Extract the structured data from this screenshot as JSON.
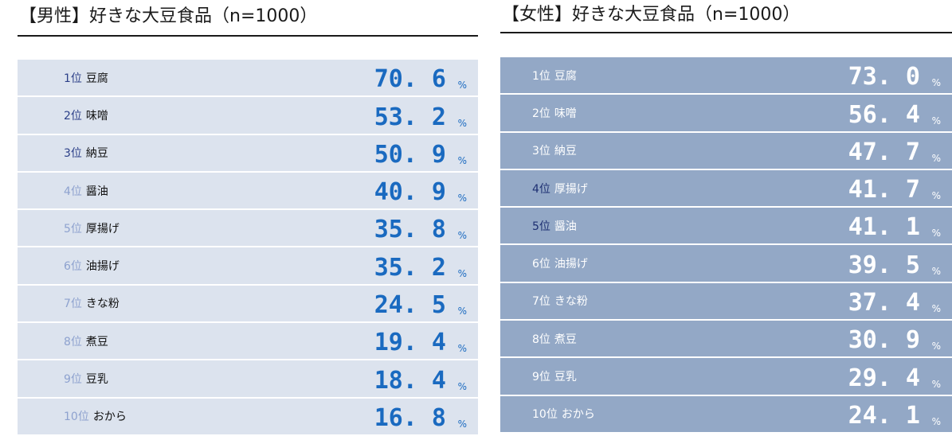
{
  "chart_data": [
    {
      "type": "table",
      "title": "【男性】好きな大豆食品（n=1000）",
      "unit": "%",
      "rows": [
        {
          "rank": "1位",
          "item": "豆腐",
          "value": "70. 6",
          "rank_color": "#2b3f88"
        },
        {
          "rank": "2位",
          "item": "味噌",
          "value": "53. 2",
          "rank_color": "#2b3f88"
        },
        {
          "rank": "3位",
          "item": "納豆",
          "value": "50. 9",
          "rank_color": "#2b3f88"
        },
        {
          "rank": "4位",
          "item": "醤油",
          "value": "40. 9",
          "rank_color": "#8ea2cf"
        },
        {
          "rank": "5位",
          "item": "厚揚げ",
          "value": "35. 8",
          "rank_color": "#8ea2cf"
        },
        {
          "rank": "6位",
          "item": "油揚げ",
          "value": "35. 2",
          "rank_color": "#8ea2cf"
        },
        {
          "rank": "7位",
          "item": "きな粉",
          "value": "24. 5",
          "rank_color": "#8ea2cf"
        },
        {
          "rank": "8位",
          "item": "煮豆",
          "value": "19. 4",
          "rank_color": "#8ea2cf"
        },
        {
          "rank": "9位",
          "item": "豆乳",
          "value": "18. 4",
          "rank_color": "#8ea2cf"
        },
        {
          "rank": "10位",
          "item": "おから",
          "value": "16. 8",
          "rank_color": "#8ea2cf"
        }
      ]
    },
    {
      "type": "table",
      "title": "【女性】好きな大豆食品（n=1000）",
      "unit": "%",
      "rows": [
        {
          "rank": "1位",
          "item": "豆腐",
          "value": "73. 0",
          "rank_color": "#ffffff"
        },
        {
          "rank": "2位",
          "item": "味噌",
          "value": "56. 4",
          "rank_color": "#ffffff"
        },
        {
          "rank": "3位",
          "item": "納豆",
          "value": "47. 7",
          "rank_color": "#ffffff"
        },
        {
          "rank": "4位",
          "item": "厚揚げ",
          "value": "41. 7",
          "rank_color": "#1d2f72"
        },
        {
          "rank": "5位",
          "item": "醤油",
          "value": "41. 1",
          "rank_color": "#1d2f72"
        },
        {
          "rank": "6位",
          "item": "油揚げ",
          "value": "39. 5",
          "rank_color": "#ffffff"
        },
        {
          "rank": "7位",
          "item": "きな粉",
          "value": "37. 4",
          "rank_color": "#ffffff"
        },
        {
          "rank": "8位",
          "item": "煮豆",
          "value": "30. 9",
          "rank_color": "#ffffff"
        },
        {
          "rank": "9位",
          "item": "豆乳",
          "value": "29. 4",
          "rank_color": "#ffffff"
        },
        {
          "rank": "10位",
          "item": "おから",
          "value": "24. 1",
          "rank_color": "#ffffff"
        }
      ]
    }
  ],
  "colors": {
    "male_row_bg": "#dce3ee",
    "male_value": "#1a6ac0",
    "female_row_bg": "#93a8c6",
    "female_value": "#ffffff"
  }
}
